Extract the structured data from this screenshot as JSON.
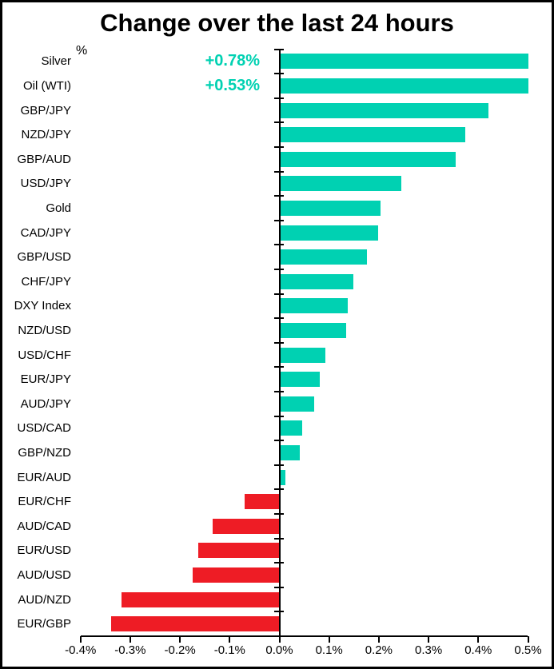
{
  "chart_data": {
    "type": "bar",
    "orientation": "horizontal",
    "title": "Change over the last 24 hours",
    "axis_unit_label": "%",
    "xlabel": "",
    "ylabel": "",
    "xlim": [
      -0.4,
      0.5
    ],
    "x_tick_step": 0.1,
    "x_tick_labels": [
      "-0.4%",
      "-0.3%",
      "-0.2%",
      "-0.1%",
      "0.0%",
      "0.1%",
      "0.2%",
      "0.3%",
      "0.4%",
      "0.5%"
    ],
    "grid": false,
    "legend": false,
    "bar_clip_max": 0.5,
    "positive_color": "#00D1B2",
    "negative_color": "#EE1C25",
    "categories": [
      "Silver",
      "Oil (WTI)",
      "GBP/JPY",
      "NZD/JPY",
      "GBP/AUD",
      "USD/JPY",
      "Gold",
      "CAD/JPY",
      "GBP/USD",
      "CHF/JPY",
      "DXY Index",
      "NZD/USD",
      "USD/CHF",
      "EUR/JPY",
      "AUD/JPY",
      "USD/CAD",
      "GBP/NZD",
      "EUR/AUD",
      "EUR/CHF",
      "AUD/CAD",
      "EUR/USD",
      "AUD/USD",
      "AUD/NZD",
      "EUR/GBP"
    ],
    "values": [
      0.78,
      0.53,
      0.42,
      0.374,
      0.355,
      0.245,
      0.203,
      0.198,
      0.176,
      0.149,
      0.138,
      0.135,
      0.092,
      0.081,
      0.07,
      0.046,
      0.041,
      0.012,
      -0.07,
      -0.135,
      -0.163,
      -0.174,
      -0.317,
      -0.338
    ],
    "annotations": [
      {
        "category": "Silver",
        "text": "+0.78%"
      },
      {
        "category": "Oil (WTI)",
        "text": "+0.53%"
      }
    ]
  }
}
